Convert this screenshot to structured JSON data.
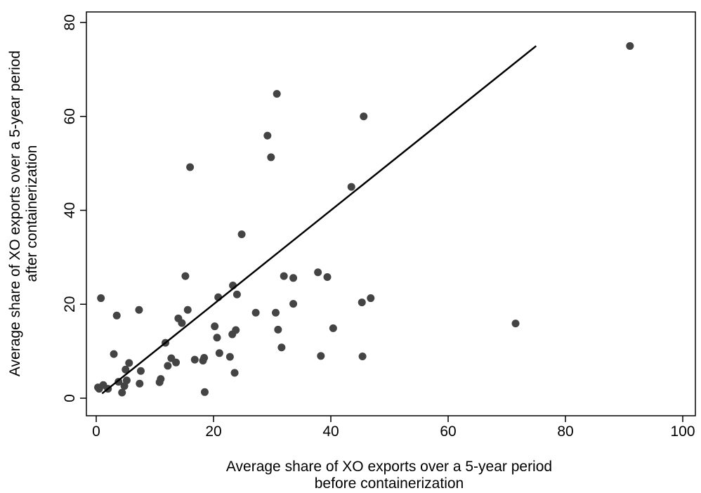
{
  "chart_data": {
    "type": "scatter",
    "title": "",
    "xlabel_lines": [
      "Average share of XO exports over a 5-year period",
      "before containerization"
    ],
    "ylabel_lines": [
      "Average share of XO exports over a 5-year period",
      "after containerization"
    ],
    "xlim": [
      0,
      100
    ],
    "ylim": [
      0,
      80
    ],
    "x_ticks": [
      0,
      20,
      40,
      60,
      80,
      100
    ],
    "y_ticks": [
      0,
      20,
      40,
      60,
      80
    ],
    "grid": false,
    "marker_color": "#444444",
    "line_color": "#000000",
    "points": [
      [
        0.3,
        2.3
      ],
      [
        0.5,
        2.0
      ],
      [
        0.8,
        21.3
      ],
      [
        1.2,
        2.8
      ],
      [
        2.0,
        2.0
      ],
      [
        3.0,
        9.4
      ],
      [
        3.5,
        17.6
      ],
      [
        3.8,
        3.5
      ],
      [
        4.4,
        1.2
      ],
      [
        4.8,
        2.6
      ],
      [
        5.0,
        6.1
      ],
      [
        5.2,
        3.8
      ],
      [
        5.6,
        7.5
      ],
      [
        7.3,
        18.8
      ],
      [
        7.4,
        3.1
      ],
      [
        7.6,
        5.8
      ],
      [
        10.8,
        3.4
      ],
      [
        11.0,
        4.1
      ],
      [
        11.8,
        11.8
      ],
      [
        12.2,
        6.9
      ],
      [
        12.8,
        8.5
      ],
      [
        13.6,
        7.6
      ],
      [
        14.0,
        17.0
      ],
      [
        14.6,
        16.0
      ],
      [
        15.2,
        26.0
      ],
      [
        15.6,
        18.8
      ],
      [
        16.0,
        49.2
      ],
      [
        16.8,
        8.2
      ],
      [
        18.2,
        8.0
      ],
      [
        18.4,
        8.6
      ],
      [
        18.5,
        1.3
      ],
      [
        20.2,
        15.3
      ],
      [
        20.6,
        12.9
      ],
      [
        20.8,
        21.5
      ],
      [
        21.0,
        9.6
      ],
      [
        22.8,
        8.8
      ],
      [
        23.2,
        13.6
      ],
      [
        23.3,
        24.0
      ],
      [
        23.6,
        5.4
      ],
      [
        23.8,
        14.5
      ],
      [
        24.0,
        22.1
      ],
      [
        24.8,
        34.9
      ],
      [
        27.2,
        18.2
      ],
      [
        29.2,
        55.9
      ],
      [
        29.8,
        51.3
      ],
      [
        30.6,
        18.2
      ],
      [
        30.8,
        64.8
      ],
      [
        31.0,
        14.6
      ],
      [
        31.6,
        10.8
      ],
      [
        32.0,
        26.0
      ],
      [
        33.6,
        25.6
      ],
      [
        33.6,
        20.1
      ],
      [
        37.8,
        26.8
      ],
      [
        38.3,
        9.0
      ],
      [
        39.4,
        25.8
      ],
      [
        40.4,
        14.9
      ],
      [
        43.5,
        45.0
      ],
      [
        45.3,
        20.4
      ],
      [
        45.4,
        8.9
      ],
      [
        45.6,
        60.0
      ],
      [
        46.8,
        21.3
      ],
      [
        71.5,
        15.9
      ],
      [
        91.0,
        75.0
      ]
    ],
    "fit_line": {
      "x": [
        1,
        75
      ],
      "y": [
        1,
        75
      ]
    }
  }
}
